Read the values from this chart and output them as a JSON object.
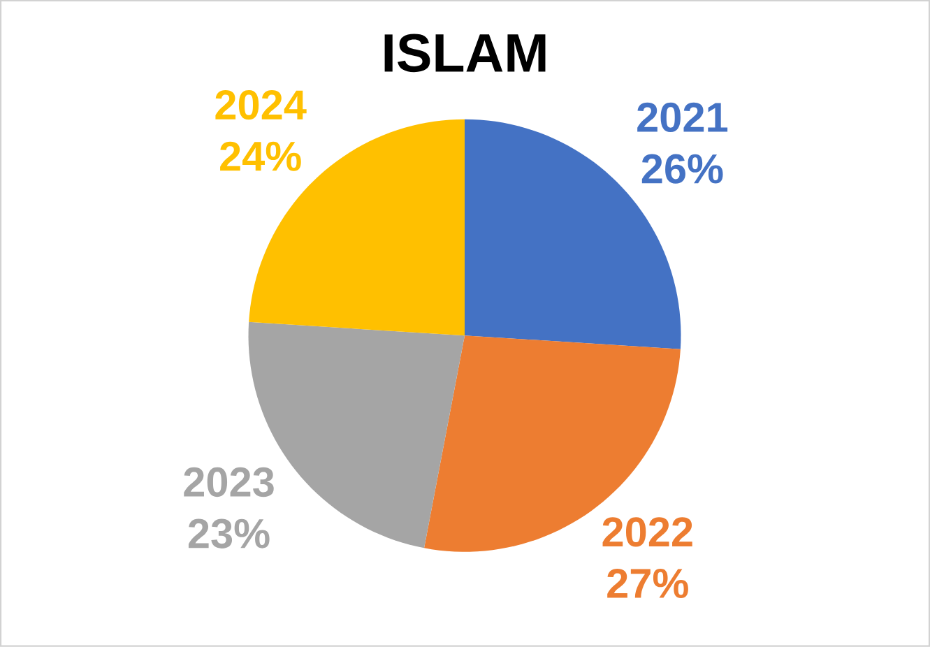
{
  "chart_data": {
    "type": "pie",
    "title": "ISLAM",
    "categories": [
      "2021",
      "2022",
      "2023",
      "2024"
    ],
    "values": [
      26,
      27,
      23,
      24
    ],
    "value_labels": [
      "26%",
      "27%",
      "23%",
      "24%"
    ],
    "colors": [
      "#4472c4",
      "#ed7d31",
      "#a5a5a5",
      "#ffc000"
    ]
  }
}
